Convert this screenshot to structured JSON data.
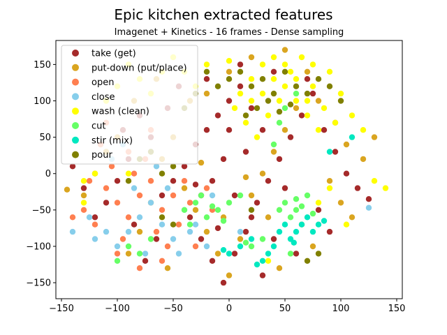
{
  "chart_data": {
    "type": "scatter",
    "title": "Epic kitchen extracted features",
    "subtitle": "Imagenet + Kinetics - 16 frames - Dense sampling",
    "xlabel": "",
    "ylabel": "",
    "xlim": [
      -155,
      155
    ],
    "ylim": [
      -172,
      183
    ],
    "xticks": [
      -150,
      -100,
      -50,
      0,
      50,
      100,
      150
    ],
    "yticks": [
      -150,
      -100,
      -50,
      0,
      50,
      100,
      150
    ],
    "grid": false,
    "legend_position": "top-left",
    "series": [
      {
        "name": "take (get)",
        "color": "#a52a2a",
        "points": [
          [
            -40,
            10
          ],
          [
            -30,
            40
          ],
          [
            -20,
            60
          ],
          [
            -10,
            80
          ],
          [
            0,
            100
          ],
          [
            10,
            120
          ],
          [
            20,
            90
          ],
          [
            30,
            60
          ],
          [
            -50,
            -10
          ],
          [
            -60,
            -30
          ],
          [
            -35,
            -60
          ],
          [
            -25,
            -90
          ],
          [
            -15,
            -120
          ],
          [
            -5,
            -150
          ],
          [
            5,
            -110
          ],
          [
            15,
            -80
          ],
          [
            25,
            -40
          ],
          [
            35,
            -10
          ],
          [
            45,
            20
          ],
          [
            55,
            50
          ],
          [
            65,
            80
          ],
          [
            75,
            110
          ],
          [
            85,
            60
          ],
          [
            95,
            30
          ],
          [
            105,
            0
          ],
          [
            115,
            -20
          ],
          [
            125,
            -35
          ],
          [
            -70,
            50
          ],
          [
            -80,
            80
          ],
          [
            -90,
            20
          ],
          [
            -100,
            -10
          ],
          [
            -110,
            -40
          ],
          [
            -120,
            -60
          ],
          [
            -130,
            -20
          ],
          [
            -140,
            10
          ],
          [
            -45,
            120
          ],
          [
            -20,
            130
          ],
          [
            10,
            150
          ],
          [
            40,
            140
          ],
          [
            70,
            130
          ],
          [
            -5,
            20
          ],
          [
            -15,
            -10
          ],
          [
            -25,
            -30
          ],
          [
            5,
            -30
          ],
          [
            20,
            -60
          ],
          [
            50,
            -20
          ],
          [
            80,
            -50
          ],
          [
            90,
            -80
          ],
          [
            60,
            -110
          ],
          [
            30,
            -140
          ],
          [
            -55,
            90
          ],
          [
            -65,
            -90
          ],
          [
            -75,
            -120
          ],
          [
            -85,
            -70
          ],
          [
            -95,
            60
          ],
          [
            -10,
            -75
          ],
          [
            0,
            60
          ],
          [
            15,
            30
          ],
          [
            -30,
            -15
          ],
          [
            40,
            -90
          ]
        ]
      },
      {
        "name": "put-down (put/place)",
        "color": "#daa520",
        "points": [
          [
            -60,
            20
          ],
          [
            -50,
            50
          ],
          [
            -40,
            -20
          ],
          [
            -30,
            -50
          ],
          [
            -20,
            -80
          ],
          [
            -10,
            -110
          ],
          [
            0,
            -140
          ],
          [
            10,
            -90
          ],
          [
            20,
            -30
          ],
          [
            30,
            0
          ],
          [
            40,
            30
          ],
          [
            50,
            60
          ],
          [
            60,
            90
          ],
          [
            70,
            140
          ],
          [
            80,
            100
          ],
          [
            90,
            -10
          ],
          [
            100,
            -40
          ],
          [
            110,
            -60
          ],
          [
            120,
            20
          ],
          [
            130,
            50
          ],
          [
            -70,
            -40
          ],
          [
            -80,
            -80
          ],
          [
            -90,
            -110
          ],
          [
            -100,
            50
          ],
          [
            -110,
            30
          ],
          [
            -120,
            0
          ],
          [
            -130,
            -30
          ],
          [
            -145,
            -22
          ],
          [
            -20,
            110
          ],
          [
            0,
            140
          ],
          [
            20,
            160
          ],
          [
            50,
            170
          ],
          [
            -35,
            100
          ],
          [
            -55,
            -130
          ],
          [
            45,
            -130
          ],
          [
            75,
            -100
          ],
          [
            95,
            70
          ],
          [
            105,
            40
          ],
          [
            -5,
            -60
          ],
          [
            15,
            -5
          ],
          [
            -25,
            15
          ],
          [
            35,
            -60
          ],
          [
            65,
            -70
          ],
          [
            -85,
            100
          ],
          [
            -65,
            130
          ]
        ]
      },
      {
        "name": "open",
        "color": "#ff7f50",
        "points": [
          [
            -110,
            -20
          ],
          [
            -100,
            -40
          ],
          [
            -90,
            -60
          ],
          [
            -80,
            -30
          ],
          [
            -70,
            -10
          ],
          [
            -60,
            -50
          ],
          [
            -120,
            -70
          ],
          [
            -130,
            -50
          ],
          [
            -95,
            -90
          ],
          [
            -85,
            0
          ],
          [
            -75,
            20
          ],
          [
            -105,
            10
          ],
          [
            -115,
            40
          ],
          [
            -125,
            -10
          ],
          [
            -65,
            -80
          ],
          [
            -55,
            -100
          ],
          [
            -45,
            -70
          ],
          [
            -35,
            -40
          ],
          [
            -140,
            -60
          ],
          [
            -100,
            -110
          ],
          [
            -80,
            -130
          ],
          [
            -60,
            -120
          ],
          [
            -90,
            30
          ],
          [
            -70,
            60
          ],
          [
            -50,
            -30
          ],
          [
            -40,
            -10
          ],
          [
            -110,
            70
          ],
          [
            -20,
            -20
          ],
          [
            -15,
            -50
          ],
          [
            -30,
            -100
          ]
        ]
      },
      {
        "name": "close",
        "color": "#87ceeb",
        "points": [
          [
            -90,
            -80
          ],
          [
            -80,
            -60
          ],
          [
            -70,
            -40
          ],
          [
            -60,
            -70
          ],
          [
            -50,
            -90
          ],
          [
            -100,
            -100
          ],
          [
            -110,
            -80
          ],
          [
            -40,
            -50
          ],
          [
            -30,
            -70
          ],
          [
            -20,
            -100
          ],
          [
            -120,
            -90
          ],
          [
            -75,
            -110
          ],
          [
            -55,
            -20
          ],
          [
            -85,
            -20
          ],
          [
            -95,
            40
          ],
          [
            -105,
            20
          ],
          [
            -65,
            10
          ],
          [
            -45,
            -110
          ],
          [
            -125,
            -60
          ],
          [
            -35,
            -80
          ],
          [
            10,
            -80
          ],
          [
            125,
            -47
          ],
          [
            -140,
            -80
          ],
          [
            -15,
            -30
          ]
        ]
      },
      {
        "name": "wash (clean)",
        "color": "#ffff00",
        "points": [
          [
            10,
            110
          ],
          [
            20,
            130
          ],
          [
            30,
            150
          ],
          [
            40,
            160
          ],
          [
            50,
            120
          ],
          [
            60,
            100
          ],
          [
            70,
            80
          ],
          [
            80,
            60
          ],
          [
            90,
            140
          ],
          [
            100,
            110
          ],
          [
            5,
            90
          ],
          [
            15,
            70
          ],
          [
            25,
            50
          ],
          [
            35,
            80
          ],
          [
            45,
            100
          ],
          [
            55,
            140
          ],
          [
            65,
            160
          ],
          [
            75,
            120
          ],
          [
            85,
            90
          ],
          [
            95,
            70
          ],
          [
            30,
            110
          ],
          [
            40,
            130
          ],
          [
            50,
            150
          ],
          [
            60,
            130
          ],
          [
            20,
            100
          ],
          [
            70,
            100
          ],
          [
            -100,
            120
          ],
          [
            -80,
            130
          ],
          [
            -60,
            140
          ],
          [
            -110,
            100
          ],
          [
            -90,
            150
          ],
          [
            -70,
            110
          ],
          [
            -120,
            0
          ],
          [
            -130,
            -10
          ],
          [
            -90,
            0
          ],
          [
            -30,
            120
          ],
          [
            -40,
            140
          ],
          [
            -50,
            160
          ],
          [
            -20,
            150
          ],
          [
            0,
            155
          ],
          [
            110,
            80
          ],
          [
            120,
            60
          ],
          [
            140,
            -20
          ],
          [
            130,
            -10
          ],
          [
            80,
            -40
          ],
          [
            90,
            -20
          ],
          [
            75,
            150
          ],
          [
            105,
            -70
          ],
          [
            -130,
            -40
          ],
          [
            35,
            -120
          ]
        ]
      },
      {
        "name": "cut",
        "color": "#66ff66",
        "points": [
          [
            -40,
            -50
          ],
          [
            -30,
            -40
          ],
          [
            -20,
            -60
          ],
          [
            -10,
            -50
          ],
          [
            0,
            -40
          ],
          [
            10,
            -30
          ],
          [
            -35,
            -70
          ],
          [
            -25,
            -30
          ],
          [
            -15,
            -45
          ],
          [
            -5,
            -65
          ],
          [
            50,
            -40
          ],
          [
            60,
            -50
          ],
          [
            70,
            -30
          ],
          [
            55,
            -60
          ],
          [
            65,
            -45
          ],
          [
            75,
            -55
          ],
          [
            45,
            -50
          ],
          [
            60,
            -35
          ],
          [
            40,
            40
          ],
          [
            50,
            90
          ],
          [
            60,
            110
          ],
          [
            45,
            70
          ],
          [
            -90,
            -100
          ],
          [
            -80,
            -110
          ],
          [
            -100,
            -120
          ],
          [
            -70,
            -90
          ],
          [
            20,
            -100
          ],
          [
            30,
            -90
          ],
          [
            15,
            -95
          ],
          [
            55,
            -110
          ]
        ]
      },
      {
        "name": "stir (mix)",
        "color": "#00e8c0",
        "points": [
          [
            50,
            -70
          ],
          [
            60,
            -80
          ],
          [
            70,
            -60
          ],
          [
            55,
            -90
          ],
          [
            65,
            -70
          ],
          [
            75,
            -80
          ],
          [
            45,
            -80
          ],
          [
            80,
            -70
          ],
          [
            35,
            -110
          ],
          [
            30,
            -120
          ],
          [
            25,
            -125
          ],
          [
            40,
            -100
          ],
          [
            10,
            -100
          ],
          [
            0,
            -110
          ],
          [
            -5,
            -105
          ],
          [
            20,
            -90
          ],
          [
            110,
            50
          ],
          [
            90,
            30
          ],
          [
            85,
            -65
          ],
          [
            58,
            -95
          ]
        ]
      },
      {
        "name": "pour",
        "color": "#808000",
        "points": [
          [
            -20,
            140
          ],
          [
            -10,
            120
          ],
          [
            0,
            130
          ],
          [
            10,
            140
          ],
          [
            20,
            120
          ],
          [
            30,
            130
          ],
          [
            40,
            110
          ],
          [
            50,
            140
          ],
          [
            60,
            120
          ],
          [
            70,
            110
          ],
          [
            80,
            130
          ],
          [
            90,
            120
          ],
          [
            100,
            100
          ],
          [
            -30,
            110
          ],
          [
            -40,
            90
          ],
          [
            15,
            80
          ],
          [
            25,
            90
          ],
          [
            35,
            100
          ],
          [
            45,
            85
          ],
          [
            55,
            95
          ],
          [
            -80,
            20
          ],
          [
            -70,
            30
          ],
          [
            -60,
            0
          ],
          [
            -90,
            -10
          ],
          [
            -50,
            10
          ],
          [
            80,
            -110
          ],
          [
            70,
            -120
          ],
          [
            -60,
            -60
          ],
          [
            -50,
            -70
          ],
          [
            20,
            -50
          ]
        ]
      }
    ]
  }
}
